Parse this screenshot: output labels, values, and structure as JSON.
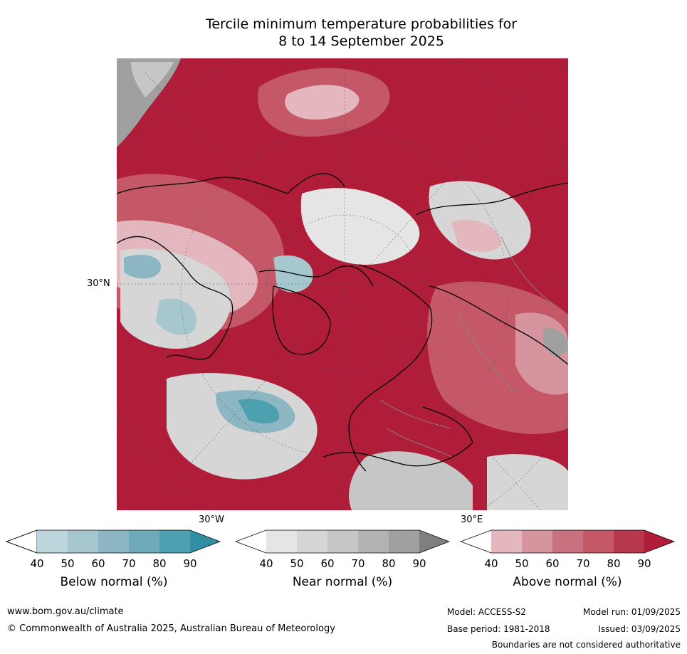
{
  "title": {
    "line1": "Tercile minimum temperature probabilities for",
    "line2": "8 to 14 September 2025"
  },
  "map": {
    "projection": "north-polar-stereographic",
    "lat_label": "30°N",
    "lon_labels": [
      "30°W",
      "30°E"
    ]
  },
  "legends": [
    {
      "id": "below",
      "title": "Below normal (%)",
      "ticks": [
        "40",
        "50",
        "60",
        "70",
        "80",
        "90"
      ],
      "colors": [
        "#ffffff",
        "#bdd5dc",
        "#a6c7ce",
        "#8cb6c2",
        "#6eaab7",
        "#4da0b0",
        "#2f8fa3"
      ]
    },
    {
      "id": "near",
      "title": "Near normal (%)",
      "ticks": [
        "40",
        "50",
        "60",
        "70",
        "80",
        "90"
      ],
      "colors": [
        "#ffffff",
        "#e5e5e5",
        "#d6d6d6",
        "#c6c6c6",
        "#b3b3b3",
        "#a0a0a0",
        "#7f7f7f"
      ]
    },
    {
      "id": "above",
      "title": "Above normal (%)",
      "ticks": [
        "40",
        "50",
        "60",
        "70",
        "80",
        "90"
      ],
      "colors": [
        "#ffffff",
        "#e3b7bd",
        "#d6959e",
        "#c9727f",
        "#c45867",
        "#b8384b",
        "#b01d38"
      ]
    }
  ],
  "footer": {
    "website": "www.bom.gov.au/climate",
    "copyright": "© Commonwealth of Australia 2025, Australian Bureau of Meteorology",
    "model": "Model: ACCESS-S2",
    "base_period": "Base period: 1981-2018",
    "model_run": "Model run: 01/09/2025",
    "issued": "Issued: 03/09/2025",
    "disclaimer": "Boundaries are not considered authoritative"
  }
}
